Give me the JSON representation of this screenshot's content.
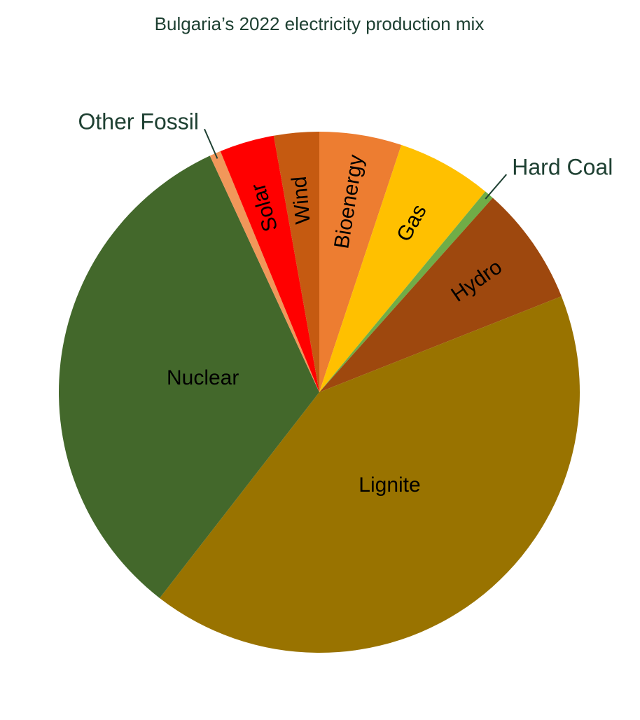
{
  "chart_data": {
    "type": "pie",
    "title": "Bulgaria’s 2022 electricity production mix",
    "categories": [
      "Bioenergy",
      "Gas",
      "Hard Coal",
      "Hydro",
      "Lignite",
      "Nuclear",
      "Other Fossil",
      "Solar",
      "Wind"
    ],
    "values": [
      5.1,
      5.9,
      0.6,
      7.4,
      41.5,
      32.6,
      0.7,
      3.4,
      2.8
    ],
    "colors": [
      "#ed7d31",
      "#ffc000",
      "#70ad47",
      "#9e480e",
      "#997300",
      "#43682b",
      "#f1975a",
      "#ff0000",
      "#c55a11"
    ]
  }
}
